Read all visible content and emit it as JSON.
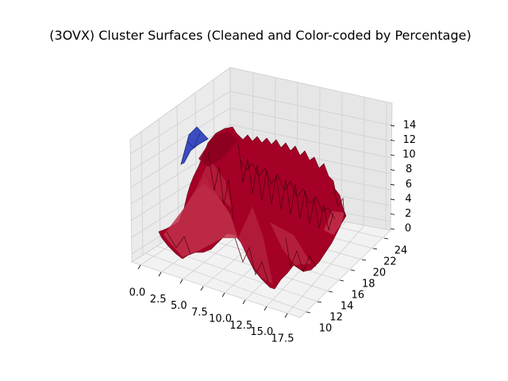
{
  "chart_data": {
    "type": "surface3d",
    "title": "(3OVX) Cluster Surfaces (Cleaned and Color-coded by Percentage)",
    "xlabel": "",
    "ylabel": "",
    "zlabel": "",
    "xlim": [
      -1,
      19
    ],
    "ylim": [
      8.5,
      24.5
    ],
    "zlim": [
      -0.5,
      15.5
    ],
    "x_ticks": [
      "0.0",
      "2.5",
      "5.0",
      "7.5",
      "10.0",
      "12.5",
      "15.0",
      "17.5"
    ],
    "y_ticks": [
      "10",
      "12",
      "14",
      "16",
      "18",
      "20",
      "22",
      "24"
    ],
    "z_ticks": [
      "0",
      "2",
      "4",
      "6",
      "8",
      "10",
      "12",
      "14"
    ],
    "grid": true,
    "colors": {
      "main_surface": "#a50026",
      "minor_surface": "#3a4cc0",
      "pane": "#f2f2f2",
      "grid": "#cfcfcf"
    },
    "series": [
      {
        "surface": "red",
        "x_range": [
          0,
          18
        ],
        "y_range": [
          9,
          22
        ],
        "z_range": [
          0,
          12.5
        ]
      },
      {
        "surface": "blue",
        "x_range": [
          2,
          3
        ],
        "y_range": [
          22,
          24
        ],
        "z_range": [
          13,
          15
        ]
      }
    ]
  }
}
